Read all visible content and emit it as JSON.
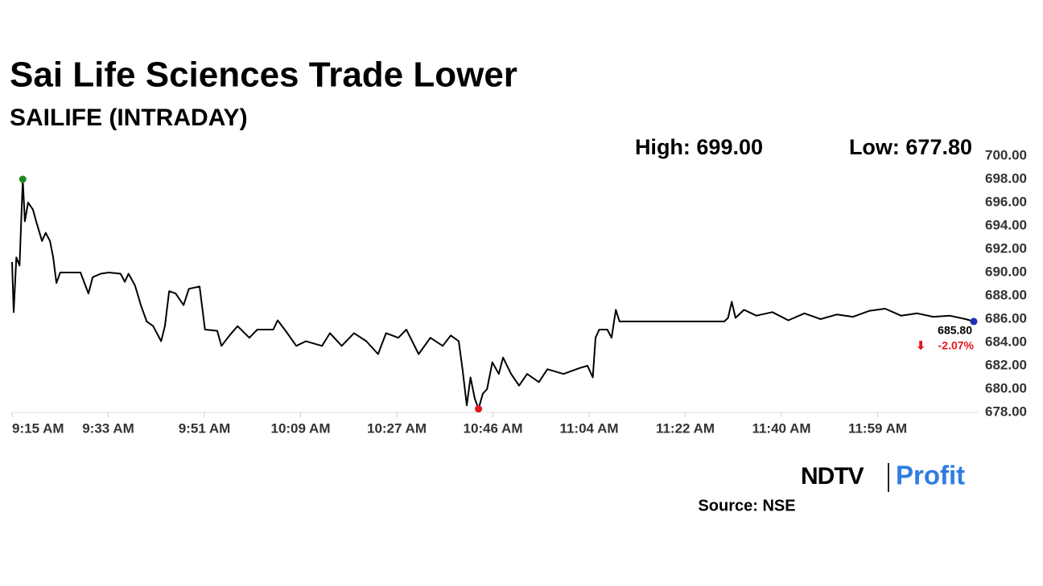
{
  "chart_data": {
    "type": "line",
    "title": "Sai Life Sciences Trade Lower",
    "subtitle": "SAILIFE (INTRADAY)",
    "annotations": {
      "high": "High: 699.00",
      "low": "Low: 677.80",
      "last": "685.80",
      "change": "-2.07%"
    },
    "source": "Source: NSE",
    "brand": [
      "NDTV",
      "Profit"
    ],
    "color": "#000000",
    "high_color": "#1a8a1a",
    "low_color": "#e8141c",
    "last_color": "#1c2fb8",
    "x": [
      0,
      0.3,
      0.8,
      1.4,
      2.0,
      2.4,
      3.0,
      3.9,
      4.5,
      5.6,
      6.3,
      7.1,
      7.7,
      8.3,
      9.0,
      10.5,
      12.8,
      14.3,
      15.1,
      16.6,
      18.1,
      20.3,
      21.1,
      21.8,
      23.0,
      24.1,
      25.2,
      26.4,
      27.9,
      28.6,
      29.4,
      30.6,
      32.1,
      33.1,
      35.1,
      36.1,
      38.4,
      39.2,
      40.7,
      42.2,
      44.4,
      45.9,
      48.9,
      49.7,
      51.2,
      53.2,
      55.0,
      58.0,
      59.5,
      61.7,
      64.0,
      66.3,
      68.5,
      70.0,
      72.3,
      73.8,
      76.1,
      78.3,
      80.6,
      82.1,
      83.6,
      84.3,
      85.1,
      85.8,
      86.6,
      87.3,
      88.1,
      88.9,
      89.9,
      91.1,
      91.9,
      93.4,
      94.9,
      96.4,
      98.6,
      100.2,
      103.2,
      106.2,
      107.7,
      108.7,
      109.2,
      109.9,
      111.4,
      112.2,
      113.0,
      113.7,
      133.3,
      134.0,
      134.7,
      135.4,
      137.0,
      139.3,
      142.3,
      145.3,
      148.3,
      151.3,
      154.4,
      157.4,
      160.4,
      163.4,
      166.4,
      169.4,
      172.4,
      175.5,
      178.5,
      180.0
    ],
    "values": [
      690.9,
      686.6,
      691.3,
      690.6,
      698.0,
      694.4,
      696.0,
      695.4,
      694.4,
      692.7,
      693.4,
      692.7,
      691.3,
      689.1,
      690.0,
      690.0,
      690.0,
      688.2,
      689.6,
      689.9,
      690.0,
      689.9,
      689.2,
      689.9,
      688.9,
      687.2,
      685.8,
      685.4,
      684.1,
      685.4,
      688.4,
      688.2,
      687.2,
      688.6,
      688.8,
      685.1,
      685.0,
      683.7,
      684.6,
      685.4,
      684.4,
      685.1,
      685.1,
      685.9,
      685.0,
      683.7,
      684.1,
      683.7,
      684.8,
      683.7,
      684.8,
      684.1,
      683.0,
      684.8,
      684.4,
      685.1,
      683.0,
      684.4,
      683.7,
      684.6,
      684.1,
      681.7,
      678.6,
      681.0,
      679.2,
      678.3,
      679.6,
      680.0,
      682.3,
      681.3,
      682.7,
      681.3,
      680.3,
      681.3,
      680.6,
      681.7,
      681.3,
      681.8,
      682.0,
      681.0,
      684.4,
      685.1,
      685.1,
      684.4,
      686.8,
      685.8,
      685.8,
      686.1,
      687.5,
      686.1,
      686.8,
      686.3,
      686.6,
      685.9,
      686.5,
      686.0,
      686.4,
      686.2,
      686.7,
      686.9,
      686.3,
      686.5,
      686.2,
      686.3,
      686.0,
      685.8
    ],
    "xlim": [
      0,
      180
    ],
    "xticks": [
      {
        "value": 0,
        "label": "9:15 AM"
      },
      {
        "value": 18,
        "label": "9:33 AM"
      },
      {
        "value": 36,
        "label": "9:51 AM"
      },
      {
        "value": 54,
        "label": "10:09 AM"
      },
      {
        "value": 72,
        "label": "10:27 AM"
      },
      {
        "value": 90,
        "label": "10:46 AM"
      },
      {
        "value": 108,
        "label": "11:04 AM"
      },
      {
        "value": 126,
        "label": "11:22 AM"
      },
      {
        "value": 144,
        "label": "11:40 AM"
      },
      {
        "value": 162,
        "label": "11:59 AM"
      }
    ],
    "ylim": [
      678,
      700
    ],
    "yticks": [
      {
        "value": 678,
        "label": "678.00"
      },
      {
        "value": 680,
        "label": "680.00"
      },
      {
        "value": 682,
        "label": "682.00"
      },
      {
        "value": 684,
        "label": "684.00"
      },
      {
        "value": 686,
        "label": "686.00"
      },
      {
        "value": 688,
        "label": "688.00"
      },
      {
        "value": 690,
        "label": "690.00"
      },
      {
        "value": 692,
        "label": "692.00"
      },
      {
        "value": 694,
        "label": "694.00"
      },
      {
        "value": 696,
        "label": "696.00"
      },
      {
        "value": 698,
        "label": "698.00"
      },
      {
        "value": 700,
        "label": "700.00"
      }
    ]
  }
}
